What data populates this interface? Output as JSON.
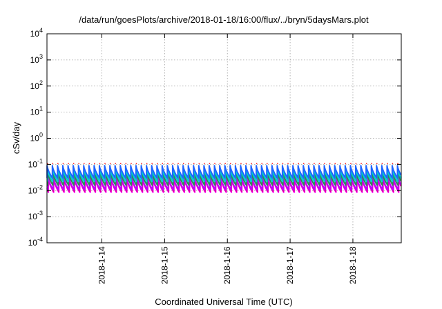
{
  "chart_data": {
    "type": "line",
    "title": "/data/run/goesPlots/archive/2018-01-18/16:00/flux/../bryn/5daysMars.plot",
    "xlabel": "Coordinated Universal Time (UTC)",
    "ylabel": "cSv/day",
    "yscale": "log",
    "ylim": [
      0.0001,
      10000
    ],
    "xlim": [
      "2018-01-13T03:00",
      "2018-01-18T18:30"
    ],
    "y_ticks": [
      {
        "base": "10",
        "exp": "-4",
        "value": 0.0001
      },
      {
        "base": "10",
        "exp": "-3",
        "value": 0.001
      },
      {
        "base": "10",
        "exp": "-2",
        "value": 0.01
      },
      {
        "base": "10",
        "exp": "-1",
        "value": 0.1
      },
      {
        "base": "10",
        "exp": "0",
        "value": 1
      },
      {
        "base": "10",
        "exp": "1",
        "value": 10
      },
      {
        "base": "10",
        "exp": "2",
        "value": 100
      },
      {
        "base": "10",
        "exp": "3",
        "value": 1000
      },
      {
        "base": "10",
        "exp": "4",
        "value": 10000
      }
    ],
    "x_ticks": [
      {
        "label": "2018-1-14",
        "value": "2018-01-14"
      },
      {
        "label": "2018-1-15",
        "value": "2018-01-15"
      },
      {
        "label": "2018-1-16",
        "value": "2018-01-16"
      },
      {
        "label": "2018-1-17",
        "value": "2018-01-17"
      },
      {
        "label": "2018-1-18",
        "value": "2018-01-18"
      }
    ],
    "grid": true,
    "legend": "none",
    "sawtooth_period_hours": 2,
    "series": [
      {
        "color": "#ff00ff",
        "peak": 0.028,
        "trough": 0.0085,
        "phase_hours": 0.55
      },
      {
        "color": "#e0008a",
        "peak": 0.032,
        "trough": 0.0095,
        "phase_hours": 0.45
      },
      {
        "color": "#c000ff",
        "peak": 0.036,
        "trough": 0.0105,
        "phase_hours": 0.35
      },
      {
        "color": "#2e8b57",
        "peak": 0.05,
        "trough": 0.016,
        "phase_hours": 0.25
      },
      {
        "color": "#00ced1",
        "peak": 0.07,
        "trough": 0.022,
        "phase_hours": 0.15
      },
      {
        "color": "#1e64ff",
        "peak": 0.09,
        "trough": 0.03,
        "phase_hours": 0.05
      },
      {
        "color": "#ff0000",
        "peak": 0.11,
        "trough": 0.105,
        "phase_hours": 0.0,
        "spike_only": true
      }
    ]
  }
}
